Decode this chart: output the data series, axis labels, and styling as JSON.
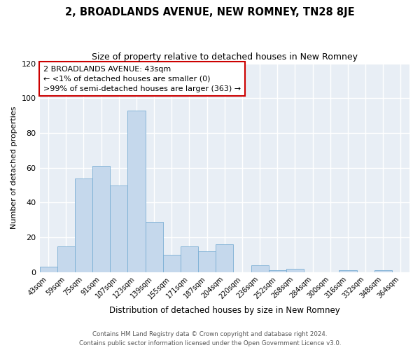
{
  "title": "2, BROADLANDS AVENUE, NEW ROMNEY, TN28 8JE",
  "subtitle": "Size of property relative to detached houses in New Romney",
  "xlabel": "Distribution of detached houses by size in New Romney",
  "ylabel": "Number of detached properties",
  "bar_labels": [
    "43sqm",
    "59sqm",
    "75sqm",
    "91sqm",
    "107sqm",
    "123sqm",
    "139sqm",
    "155sqm",
    "171sqm",
    "187sqm",
    "204sqm",
    "220sqm",
    "236sqm",
    "252sqm",
    "268sqm",
    "284sqm",
    "300sqm",
    "316sqm",
    "332sqm",
    "348sqm",
    "364sqm"
  ],
  "bar_values": [
    3,
    15,
    54,
    61,
    50,
    93,
    29,
    10,
    15,
    12,
    16,
    0,
    4,
    1,
    2,
    0,
    0,
    1,
    0,
    1,
    0
  ],
  "bar_color_normal": "#c5d8ec",
  "bar_color_edge": "#7aaed4",
  "annotation_box_text": "2 BROADLANDS AVENUE: 43sqm\n← <1% of detached houses are smaller (0)\n>99% of semi-detached houses are larger (363) →",
  "annotation_box_color": "#cc0000",
  "ylim": [
    0,
    120
  ],
  "yticks": [
    0,
    20,
    40,
    60,
    80,
    100,
    120
  ],
  "footer_line1": "Contains HM Land Registry data © Crown copyright and database right 2024.",
  "footer_line2": "Contains public sector information licensed under the Open Government Licence v3.0.",
  "background_color": "#ffffff",
  "plot_background": "#e8eef5"
}
